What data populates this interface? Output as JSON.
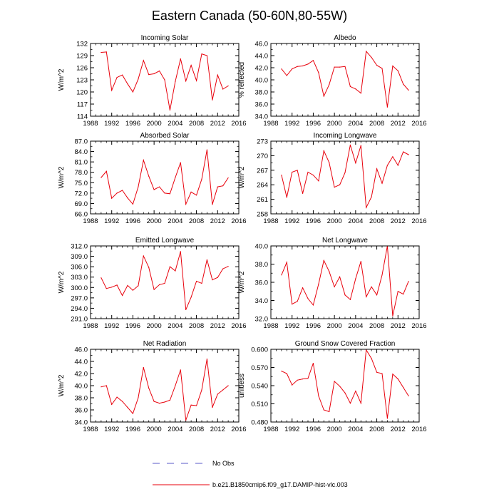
{
  "figure": {
    "title": "Eastern Canada (50-60N,80-55W)"
  },
  "legend": {
    "obs_label": "No Obs",
    "obs_color": "#5a5ac8",
    "model_label": "b.e21.B1850cmip6.f09_g17.DAMIP-hist-vlc.003",
    "model_color": "#e8000b"
  },
  "chart_data": [
    {
      "type": "line",
      "title": "Incoming Solar",
      "ylabel": "W/m^2",
      "xlim": [
        1988,
        2016
      ],
      "xticks": [
        1988,
        1992,
        1996,
        2000,
        2004,
        2008,
        2012,
        2016
      ],
      "ylim": [
        114,
        132
      ],
      "yticks": [
        "114",
        "117",
        "120",
        "123",
        "126",
        "129",
        "132"
      ],
      "x": [
        1990,
        1991,
        1992,
        1993,
        1994,
        1995,
        1996,
        1997,
        1998,
        1999,
        2000,
        2001,
        2002,
        2003,
        2004,
        2005,
        2006,
        2007,
        2008,
        2009,
        2010,
        2011,
        2012,
        2013,
        2014
      ],
      "values": [
        129.8,
        129.9,
        120.4,
        123.6,
        124.2,
        122.0,
        120.0,
        123.2,
        127.8,
        124.3,
        124.5,
        125.2,
        123.0,
        115.5,
        122.6,
        128.2,
        122.7,
        126.6,
        122.8,
        129.4,
        129.0,
        118.0,
        124.2,
        120.7,
        121.5
      ]
    },
    {
      "type": "line",
      "title": "Albedo",
      "ylabel": "% reflected",
      "xlim": [
        1988,
        2016
      ],
      "xticks": [
        1988,
        1992,
        1996,
        2000,
        2004,
        2008,
        2012,
        2016
      ],
      "ylim": [
        34,
        46
      ],
      "yticks": [
        "34.0",
        "36.0",
        "38.0",
        "40.0",
        "42.0",
        "44.0",
        "46.0"
      ],
      "x": [
        1990,
        1991,
        1992,
        1993,
        1994,
        1995,
        1996,
        1997,
        1998,
        1999,
        2000,
        2001,
        2002,
        2003,
        2004,
        2005,
        2006,
        2007,
        2008,
        2009,
        2010,
        2011,
        2012,
        2013,
        2014
      ],
      "values": [
        41.8,
        40.7,
        41.8,
        42.2,
        42.3,
        42.6,
        43.2,
        41.2,
        37.3,
        39.2,
        42.1,
        42.1,
        42.2,
        38.9,
        38.5,
        37.8,
        44.7,
        43.7,
        42.4,
        41.9,
        35.5,
        42.3,
        41.5,
        39.3,
        38.3
      ]
    },
    {
      "type": "line",
      "title": "Absorbed Solar",
      "ylabel": "W/m^2",
      "xlim": [
        1988,
        2016
      ],
      "xticks": [
        1988,
        1992,
        1996,
        2000,
        2004,
        2008,
        2012,
        2016
      ],
      "ylim": [
        66,
        87
      ],
      "yticks": [
        "66.0",
        "69.0",
        "72.0",
        "75.0",
        "78.0",
        "81.0",
        "84.0",
        "87.0"
      ],
      "x": [
        1990,
        1991,
        1992,
        1993,
        1994,
        1995,
        1996,
        1997,
        1998,
        1999,
        2000,
        2001,
        2002,
        2003,
        2004,
        2005,
        2006,
        2007,
        2008,
        2009,
        2010,
        2011,
        2012,
        2013,
        2014
      ],
      "values": [
        76.5,
        78.3,
        70.5,
        72.0,
        72.8,
        70.6,
        68.8,
        73.8,
        81.5,
        76.9,
        73.0,
        73.8,
        72.0,
        71.8,
        76.5,
        80.8,
        68.8,
        72.3,
        71.4,
        76.0,
        84.5,
        68.7,
        73.8,
        74.1,
        76.4
      ]
    },
    {
      "type": "line",
      "title": "Incoming Longwave",
      "ylabel": "W/m^2",
      "xlim": [
        1988,
        2016
      ],
      "xticks": [
        1988,
        1992,
        1996,
        2000,
        2004,
        2008,
        2012,
        2016
      ],
      "ylim": [
        258,
        273
      ],
      "yticks": [
        "258",
        "261",
        "264",
        "267",
        "270",
        "273"
      ],
      "x": [
        1990,
        1991,
        1992,
        1993,
        1994,
        1995,
        1996,
        1997,
        1998,
        1999,
        2000,
        2001,
        2002,
        2003,
        2004,
        2005,
        2006,
        2007,
        2008,
        2009,
        2010,
        2011,
        2012,
        2013,
        2014
      ],
      "values": [
        266.0,
        261.4,
        266.6,
        267.0,
        262.2,
        266.6,
        266.0,
        264.8,
        271.0,
        268.6,
        263.5,
        264.0,
        266.5,
        272.2,
        268.5,
        272.1,
        259.3,
        261.5,
        267.3,
        264.3,
        268.0,
        269.8,
        268.0,
        270.8,
        270.2
      ]
    },
    {
      "type": "line",
      "title": "Emitted Longwave",
      "ylabel": "W/m^2",
      "xlim": [
        1988,
        2016
      ],
      "xticks": [
        1988,
        1992,
        1996,
        2000,
        2004,
        2008,
        2012,
        2016
      ],
      "ylim": [
        291,
        312
      ],
      "yticks": [
        "291.0",
        "294.0",
        "297.0",
        "300.0",
        "303.0",
        "306.0",
        "309.0",
        "312.0"
      ],
      "x": [
        1990,
        1991,
        1992,
        1993,
        1994,
        1995,
        1996,
        1997,
        1998,
        1999,
        2000,
        2001,
        2002,
        2003,
        2004,
        2005,
        2006,
        2007,
        2008,
        2009,
        2010,
        2011,
        2012,
        2013,
        2014
      ],
      "values": [
        302.8,
        299.7,
        300.1,
        300.7,
        297.7,
        300.6,
        299.2,
        300.5,
        309.1,
        305.8,
        299.4,
        300.8,
        301.2,
        306.0,
        304.8,
        310.4,
        293.6,
        297.2,
        301.8,
        301.2,
        308.0,
        302.2,
        302.9,
        305.4,
        306.1
      ]
    },
    {
      "type": "line",
      "title": "Net Longwave",
      "ylabel": "W/m^2",
      "xlim": [
        1988,
        2016
      ],
      "xticks": [
        1988,
        1992,
        1996,
        2000,
        2004,
        2008,
        2012,
        2016
      ],
      "ylim": [
        32,
        40
      ],
      "yticks": [
        "32.0",
        "34.0",
        "36.0",
        "38.0",
        "40.0"
      ],
      "x": [
        1990,
        1991,
        1992,
        1993,
        1994,
        1995,
        1996,
        1997,
        1998,
        1999,
        2000,
        2001,
        2002,
        2003,
        2004,
        2005,
        2006,
        2007,
        2008,
        2009,
        2010,
        2011,
        2012,
        2013,
        2014
      ],
      "values": [
        36.8,
        38.2,
        33.6,
        33.9,
        35.4,
        34.2,
        33.5,
        35.8,
        38.4,
        37.2,
        35.5,
        36.6,
        34.6,
        34.1,
        36.4,
        38.3,
        34.4,
        35.5,
        34.6,
        36.8,
        40.0,
        32.3,
        35.0,
        34.7,
        36.1
      ]
    },
    {
      "type": "line",
      "title": "Net Radiation",
      "ylabel": "W/m^2",
      "xlim": [
        1988,
        2016
      ],
      "xticks": [
        1988,
        1992,
        1996,
        2000,
        2004,
        2008,
        2012,
        2016
      ],
      "ylim": [
        34,
        46
      ],
      "yticks": [
        "34.0",
        "36.0",
        "38.0",
        "40.0",
        "42.0",
        "44.0",
        "46.0"
      ],
      "x": [
        1990,
        1991,
        1992,
        1993,
        1994,
        1995,
        1996,
        1997,
        1998,
        1999,
        2000,
        2001,
        2002,
        2003,
        2004,
        2005,
        2006,
        2007,
        2008,
        2009,
        2010,
        2011,
        2012,
        2013,
        2014
      ],
      "values": [
        39.8,
        40.0,
        36.9,
        38.1,
        37.4,
        36.4,
        35.4,
        38.0,
        43.0,
        39.6,
        37.4,
        37.1,
        37.3,
        37.6,
        40.0,
        42.6,
        34.3,
        36.8,
        36.7,
        39.3,
        44.4,
        36.4,
        38.6,
        39.3,
        40.0
      ]
    },
    {
      "type": "line",
      "title": "Ground Snow Covered Fraction",
      "ylabel": "unitless",
      "xlim": [
        1988,
        2016
      ],
      "xticks": [
        1988,
        1992,
        1996,
        2000,
        2004,
        2008,
        2012,
        2016
      ],
      "ylim": [
        0.48,
        0.6
      ],
      "yticks": [
        "0.480",
        "0.510",
        "0.540",
        "0.570",
        "0.600"
      ],
      "x": [
        1990,
        1991,
        1992,
        1993,
        1994,
        1995,
        1996,
        1997,
        1998,
        1999,
        2000,
        2001,
        2002,
        2003,
        2004,
        2005,
        2006,
        2007,
        2008,
        2009,
        2010,
        2011,
        2012,
        2013,
        2014
      ],
      "values": [
        0.564,
        0.56,
        0.541,
        0.549,
        0.551,
        0.552,
        0.577,
        0.523,
        0.5,
        0.497,
        0.547,
        0.539,
        0.528,
        0.511,
        0.531,
        0.511,
        0.599,
        0.585,
        0.562,
        0.56,
        0.486,
        0.559,
        0.551,
        0.537,
        0.523
      ]
    }
  ]
}
